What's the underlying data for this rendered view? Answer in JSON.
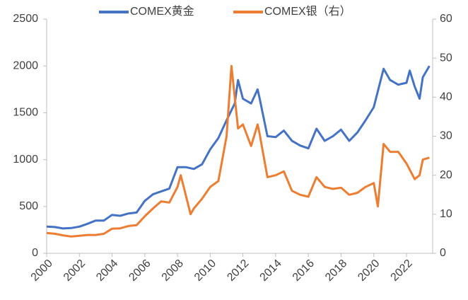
{
  "chart_data": {
    "type": "line",
    "xlim": [
      2000,
      2023.6
    ],
    "xticks": [
      2000,
      2002,
      2004,
      2006,
      2008,
      2010,
      2012,
      2014,
      2016,
      2018,
      2020,
      2022
    ],
    "ylim": [
      0,
      2500
    ],
    "yticks": [
      0,
      500,
      1000,
      1500,
      2000,
      2500
    ],
    "y2lim": [
      0,
      60
    ],
    "y2ticks": [
      0,
      10,
      20,
      30,
      40,
      50,
      60
    ],
    "legend": "top",
    "series": [
      {
        "name": "COMEX黄金",
        "color": "#4472c4",
        "x": [
          2000,
          2000.5,
          2001,
          2001.5,
          2002,
          2002.5,
          2003,
          2003.5,
          2004,
          2004.5,
          2005,
          2005.5,
          2006,
          2006.5,
          2007,
          2007.5,
          2008,
          2008.5,
          2009,
          2009.5,
          2010,
          2010.5,
          2011,
          2011.5,
          2011.7,
          2012,
          2012.5,
          2012.9,
          2013,
          2013.5,
          2014,
          2014.5,
          2015,
          2015.5,
          2016,
          2016.5,
          2017,
          2017.5,
          2018,
          2018.5,
          2019,
          2019.5,
          2020,
          2020.6,
          2021,
          2021.5,
          2022,
          2022.2,
          2022.5,
          2022.8,
          2023,
          2023.4
        ],
        "values": [
          285,
          280,
          265,
          270,
          285,
          315,
          350,
          350,
          410,
          400,
          425,
          435,
          560,
          630,
          660,
          690,
          920,
          920,
          900,
          950,
          1110,
          1230,
          1420,
          1600,
          1850,
          1650,
          1600,
          1750,
          1670,
          1250,
          1240,
          1310,
          1200,
          1150,
          1120,
          1330,
          1200,
          1250,
          1320,
          1200,
          1290,
          1420,
          1560,
          1970,
          1850,
          1800,
          1820,
          1950,
          1780,
          1650,
          1880,
          2000
        ]
      },
      {
        "name": "COMEX银（右）",
        "color": "#ed7d31",
        "axis": "y2",
        "x": [
          2000,
          2000.5,
          2001,
          2001.5,
          2002,
          2002.5,
          2003,
          2003.5,
          2004,
          2004.5,
          2005,
          2005.5,
          2006,
          2006.5,
          2007,
          2007.5,
          2008,
          2008.2,
          2008.8,
          2009,
          2009.5,
          2010,
          2010.5,
          2011,
          2011.3,
          2011.7,
          2012,
          2012.5,
          2012.9,
          2013,
          2013.5,
          2014,
          2014.5,
          2015,
          2015.5,
          2016,
          2016.5,
          2017,
          2017.5,
          2018,
          2018.5,
          2019,
          2019.5,
          2020,
          2020.25,
          2020.6,
          2021,
          2021.5,
          2022,
          2022.5,
          2022.8,
          2023,
          2023.4
        ],
        "values": [
          5.2,
          5.0,
          4.6,
          4.3,
          4.5,
          4.7,
          4.7,
          5.0,
          6.3,
          6.4,
          7.0,
          7.2,
          9.5,
          11.5,
          13.3,
          13,
          17,
          20,
          10,
          11.5,
          14,
          17,
          18.5,
          30,
          48,
          32,
          33,
          27.5,
          33,
          31,
          19.5,
          20,
          21,
          16,
          15,
          14.5,
          19.5,
          17,
          16.5,
          16.8,
          15,
          15.5,
          17,
          18,
          12,
          28,
          26,
          26,
          23,
          19,
          20,
          24,
          24.5
        ]
      }
    ]
  }
}
